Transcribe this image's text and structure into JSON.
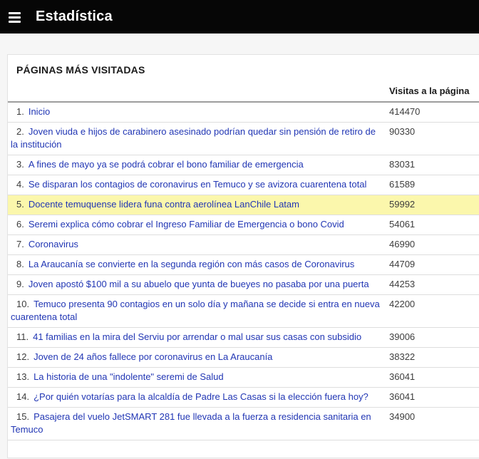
{
  "header": {
    "title": "Estadística"
  },
  "panel": {
    "title": "PÁGINAS MÁS VISITADAS",
    "visits_column_label": "Visitas a la página"
  },
  "colors": {
    "header_bg": "#060606",
    "page_bg": "#f6f6f6",
    "link": "#2136b4",
    "highlight_row_bg": "#fbf7ac"
  },
  "icons": {
    "menu": "hamburger-icon"
  },
  "rows": [
    {
      "rank": "1.",
      "title": "Inicio",
      "visits": "414470",
      "highlighted": false
    },
    {
      "rank": "2.",
      "title": "Joven viuda e hijos de carabinero asesinado podrían quedar sin pensión de retiro de la institución",
      "visits": "90330",
      "highlighted": false
    },
    {
      "rank": "3.",
      "title": "A fines de mayo ya se podrá cobrar el bono familiar de emergencia",
      "visits": "83031",
      "highlighted": false
    },
    {
      "rank": "4.",
      "title": "Se disparan los contagios de coronavirus en Temuco y se avizora cuarentena total",
      "visits": "61589",
      "highlighted": false
    },
    {
      "rank": "5.",
      "title": "Docente temuquense lidera funa contra aerolínea LanChile Latam",
      "visits": "59992",
      "highlighted": true
    },
    {
      "rank": "6.",
      "title": "Seremi explica cómo cobrar el Ingreso Familiar de Emergencia o bono Covid",
      "visits": "54061",
      "highlighted": false
    },
    {
      "rank": "7.",
      "title": "Coronavirus",
      "visits": "46990",
      "highlighted": false
    },
    {
      "rank": "8.",
      "title": "La Araucanía se convierte en la segunda región con más casos de Coronavirus",
      "visits": "44709",
      "highlighted": false
    },
    {
      "rank": "9.",
      "title": "Joven apostó $100 mil a su abuelo que yunta de bueyes no pasaba por una puerta",
      "visits": "44253",
      "highlighted": false
    },
    {
      "rank": "10.",
      "title": "Temuco presenta 90 contagios en un solo día y mañana se decide si entra en nueva cuarentena total",
      "visits": "42200",
      "highlighted": false
    },
    {
      "rank": "11.",
      "title": "41 familias en la mira del Serviu por arrendar o mal usar sus casas con subsidio",
      "visits": "39006",
      "highlighted": false
    },
    {
      "rank": "12.",
      "title": "Joven de 24 años fallece por coronavirus en La Araucanía",
      "visits": "38322",
      "highlighted": false
    },
    {
      "rank": "13.",
      "title": "La historia de una \"indolente\" seremi de Salud",
      "visits": "36041",
      "highlighted": false
    },
    {
      "rank": "14.",
      "title": "¿Por quién votarías para la alcaldía de Padre Las Casas si la elección fuera hoy?",
      "visits": "36041",
      "highlighted": false
    },
    {
      "rank": "15.",
      "title": "Pasajera del vuelo JetSMART 281 fue llevada a la fuerza a residencia sanitaria en Temuco",
      "visits": "34900",
      "highlighted": false
    }
  ]
}
